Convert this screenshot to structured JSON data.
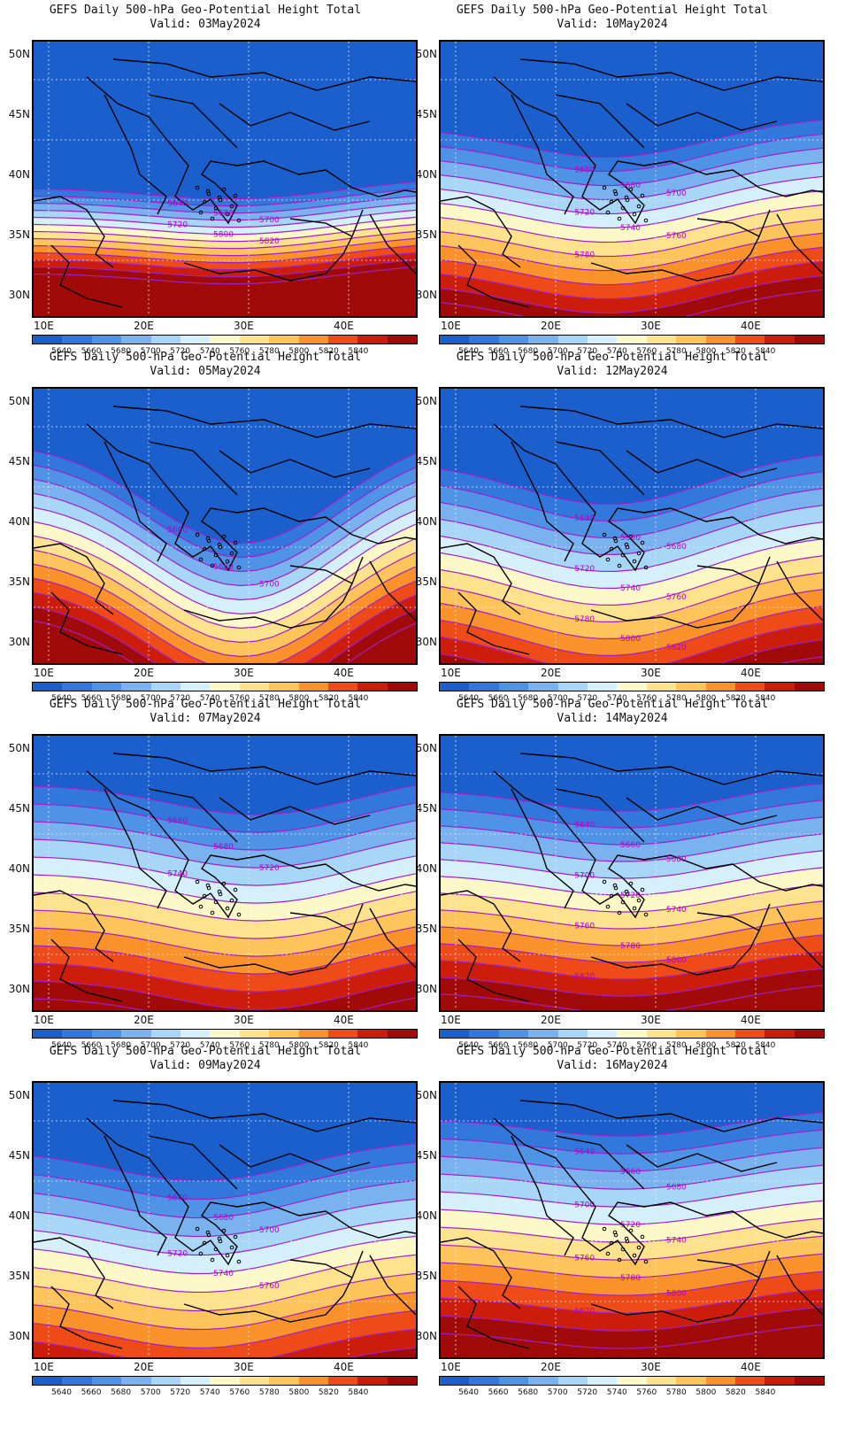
{
  "header_prefix": "GEFS Daily 500-hPa Geo-Potential Height Total",
  "latitude_labels": [
    "50N",
    "45N",
    "40N",
    "35N",
    "30N"
  ],
  "longitude_labels": [
    "10E",
    "20E",
    "30E",
    "40E"
  ],
  "colorbar": {
    "colors": [
      "#1a5fcc",
      "#3277dc",
      "#4f93e6",
      "#79b2ee",
      "#a7d6f6",
      "#d6f0fb",
      "#fdf8c8",
      "#fde38e",
      "#fcc45a",
      "#f9922a",
      "#ee4b18",
      "#cc1c0c",
      "#a00a08"
    ],
    "labels": [
      "5640",
      "5660",
      "5680",
      "5700",
      "5720",
      "5740",
      "5760",
      "5780",
      "5800",
      "5820",
      "5840"
    ]
  },
  "panels": [
    {
      "title": "GEFS Daily 500-hPa Geo-Potential Height Total",
      "valid": "Valid: 03May2024",
      "labels": [
        "5640",
        "5680",
        "5700",
        "5720",
        "5800",
        "5820"
      ]
    },
    {
      "title": "GEFS Daily 500-hPa Geo-Potential Height Total",
      "valid": "Valid: 10May2024",
      "labels": [
        "5660",
        "5680",
        "5700",
        "5720",
        "5740",
        "5760",
        "5780"
      ]
    },
    {
      "title": "GEFS Daily 500-hPa Geo-Potential Height Total",
      "valid": "Valid: 05May2024",
      "labels": [
        "5660",
        "5680",
        "5700"
      ]
    },
    {
      "title": "GEFS Daily 500-hPa Geo-Potential Height Total",
      "valid": "Valid: 12May2024",
      "labels": [
        "5640",
        "5660",
        "5680",
        "5720",
        "5740",
        "5760",
        "5780",
        "5800",
        "5820"
      ]
    },
    {
      "title": "GEFS Daily 500-hPa Geo-Potential Height Total",
      "valid": "Valid: 07May2024",
      "labels": [
        "5660",
        "5680",
        "5720",
        "5740"
      ]
    },
    {
      "title": "GEFS Daily 500-hPa Geo-Potential Height Total",
      "valid": "Valid: 14May2024",
      "labels": [
        "5640",
        "5660",
        "5680",
        "5700",
        "5720",
        "5740",
        "5760",
        "5780",
        "5800",
        "5820"
      ]
    },
    {
      "title": "GEFS Daily 500-hPa Geo-Potential Height Total",
      "valid": "Valid: 09May2024",
      "labels": [
        "5660",
        "5680",
        "5700",
        "5720",
        "5740",
        "5760"
      ]
    },
    {
      "title": "GEFS Daily 500-hPa Geo-Potential Height Total",
      "valid": "Valid: 16May2024",
      "labels": [
        "5640",
        "5660",
        "5680",
        "5700",
        "5720",
        "5740",
        "5760",
        "5780",
        "5800",
        "5820"
      ]
    }
  ]
}
